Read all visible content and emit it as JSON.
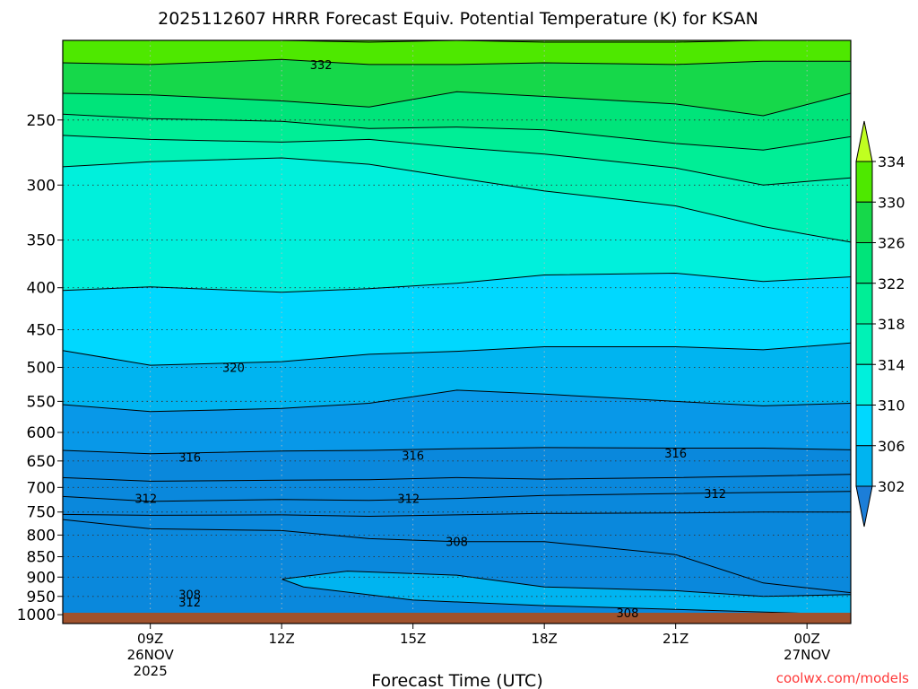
{
  "chart_data": {
    "type": "contour",
    "title": "2025112607 HRRR Forecast Equiv. Potential Temperature (K) for KSAN",
    "xlabel": "Forecast Time (UTC)",
    "ylabel": "",
    "y_scale": "log",
    "y_reversed": true,
    "ylim": [
      1025,
      200
    ],
    "xlim_hours_utc": [
      7,
      25
    ],
    "y_ticks": [
      {
        "value": 250,
        "label": "250"
      },
      {
        "value": 300,
        "label": "300"
      },
      {
        "value": 350,
        "label": "350"
      },
      {
        "value": 400,
        "label": "400"
      },
      {
        "value": 450,
        "label": "450"
      },
      {
        "value": 500,
        "label": "500"
      },
      {
        "value": 550,
        "label": "550"
      },
      {
        "value": 600,
        "label": "600"
      },
      {
        "value": 650,
        "label": "650"
      },
      {
        "value": 700,
        "label": "700"
      },
      {
        "value": 750,
        "label": "750"
      },
      {
        "value": 800,
        "label": "800"
      },
      {
        "value": 850,
        "label": "850"
      },
      {
        "value": 900,
        "label": "900"
      },
      {
        "value": 950,
        "label": "950"
      },
      {
        "value": 1000,
        "label": "1000"
      }
    ],
    "x_ticks": [
      {
        "hour": 9,
        "lines": [
          "09Z",
          "26NOV",
          "2025"
        ]
      },
      {
        "hour": 12,
        "lines": [
          "12Z"
        ]
      },
      {
        "hour": 15,
        "lines": [
          "15Z"
        ]
      },
      {
        "hour": 18,
        "lines": [
          "18Z"
        ]
      },
      {
        "hour": 21,
        "lines": [
          "21Z"
        ]
      },
      {
        "hour": 24,
        "lines": [
          "00Z",
          "27NOV"
        ]
      }
    ],
    "grid": true,
    "colorbar": {
      "labels": [
        334,
        330,
        326,
        322,
        318,
        314,
        310,
        306,
        302
      ],
      "colors": [
        "#4ee800",
        "#16d84a",
        "#00e47a",
        "#00ee96",
        "#00f2b6",
        "#00f0dc",
        "#00d8ff",
        "#00b4f0",
        "#0898e8",
        "#0a88dc"
      ],
      "top_arrow_color": "#c0ff20",
      "bottom_arrow_color": "#1c7ed8",
      "extend": "both"
    },
    "contour_labels": [
      {
        "text": "332",
        "hour": 12.9,
        "p": 214
      },
      {
        "text": "320",
        "hour": 10.9,
        "p": 500
      },
      {
        "text": "316",
        "hour": 9.9,
        "p": 643
      },
      {
        "text": "316",
        "hour": 15.0,
        "p": 640
      },
      {
        "text": "316",
        "hour": 21.0,
        "p": 636
      },
      {
        "text": "312",
        "hour": 8.9,
        "p": 722
      },
      {
        "text": "312",
        "hour": 14.9,
        "p": 722
      },
      {
        "text": "312",
        "hour": 21.9,
        "p": 712
      },
      {
        "text": "308",
        "hour": 16.0,
        "p": 814
      },
      {
        "text": "308",
        "hour": 9.9,
        "p": 945
      },
      {
        "text": "312",
        "hour": 9.9,
        "p": 965
      },
      {
        "text": "308",
        "hour": 19.9,
        "p": 995
      }
    ],
    "level_lines": [
      {
        "ps": [
          200,
          200,
          200,
          201,
          200,
          201,
          201,
          200,
          199
        ]
      },
      {
        "ps": [
          213,
          214,
          211,
          214,
          214,
          213,
          214,
          212,
          212
        ]
      },
      {
        "ps": [
          232,
          233,
          237,
          241,
          231,
          234,
          239,
          247,
          232
        ]
      },
      {
        "ps": [
          246,
          249,
          251,
          256,
          255,
          257,
          267,
          272,
          262
        ]
      },
      {
        "ps": [
          261,
          264,
          266,
          264,
          270,
          275,
          286,
          300,
          294
        ]
      },
      {
        "ps": [
          285,
          281,
          278,
          283,
          294,
          305,
          318,
          337,
          352
        ]
      },
      {
        "ps": [
          403,
          399,
          405,
          401,
          395,
          386,
          384,
          393,
          388
        ]
      },
      {
        "ps": [
          477,
          497,
          492,
          482,
          478,
          472,
          472,
          476,
          467
        ]
      },
      {
        "ps": [
          555,
          566,
          561,
          553,
          533,
          539,
          550,
          557,
          553
        ]
      },
      {
        "ps": [
          631,
          637,
          632,
          631,
          628,
          626,
          627,
          627,
          630
        ]
      },
      {
        "ps": [
          681,
          688,
          686,
          685,
          681,
          684,
          681,
          678,
          675
        ]
      },
      {
        "ps": [
          718,
          728,
          724,
          726,
          722,
          716,
          712,
          710,
          708
        ]
      },
      {
        "ps": [
          755,
          757,
          756,
          759,
          756,
          753,
          752,
          750,
          750
        ]
      },
      {
        "ps": [
          766,
          786,
          790,
          808,
          815,
          815,
          845,
          915,
          940
        ]
      }
    ]
  },
  "footer": {
    "watermark": "coolwx.com/models"
  }
}
